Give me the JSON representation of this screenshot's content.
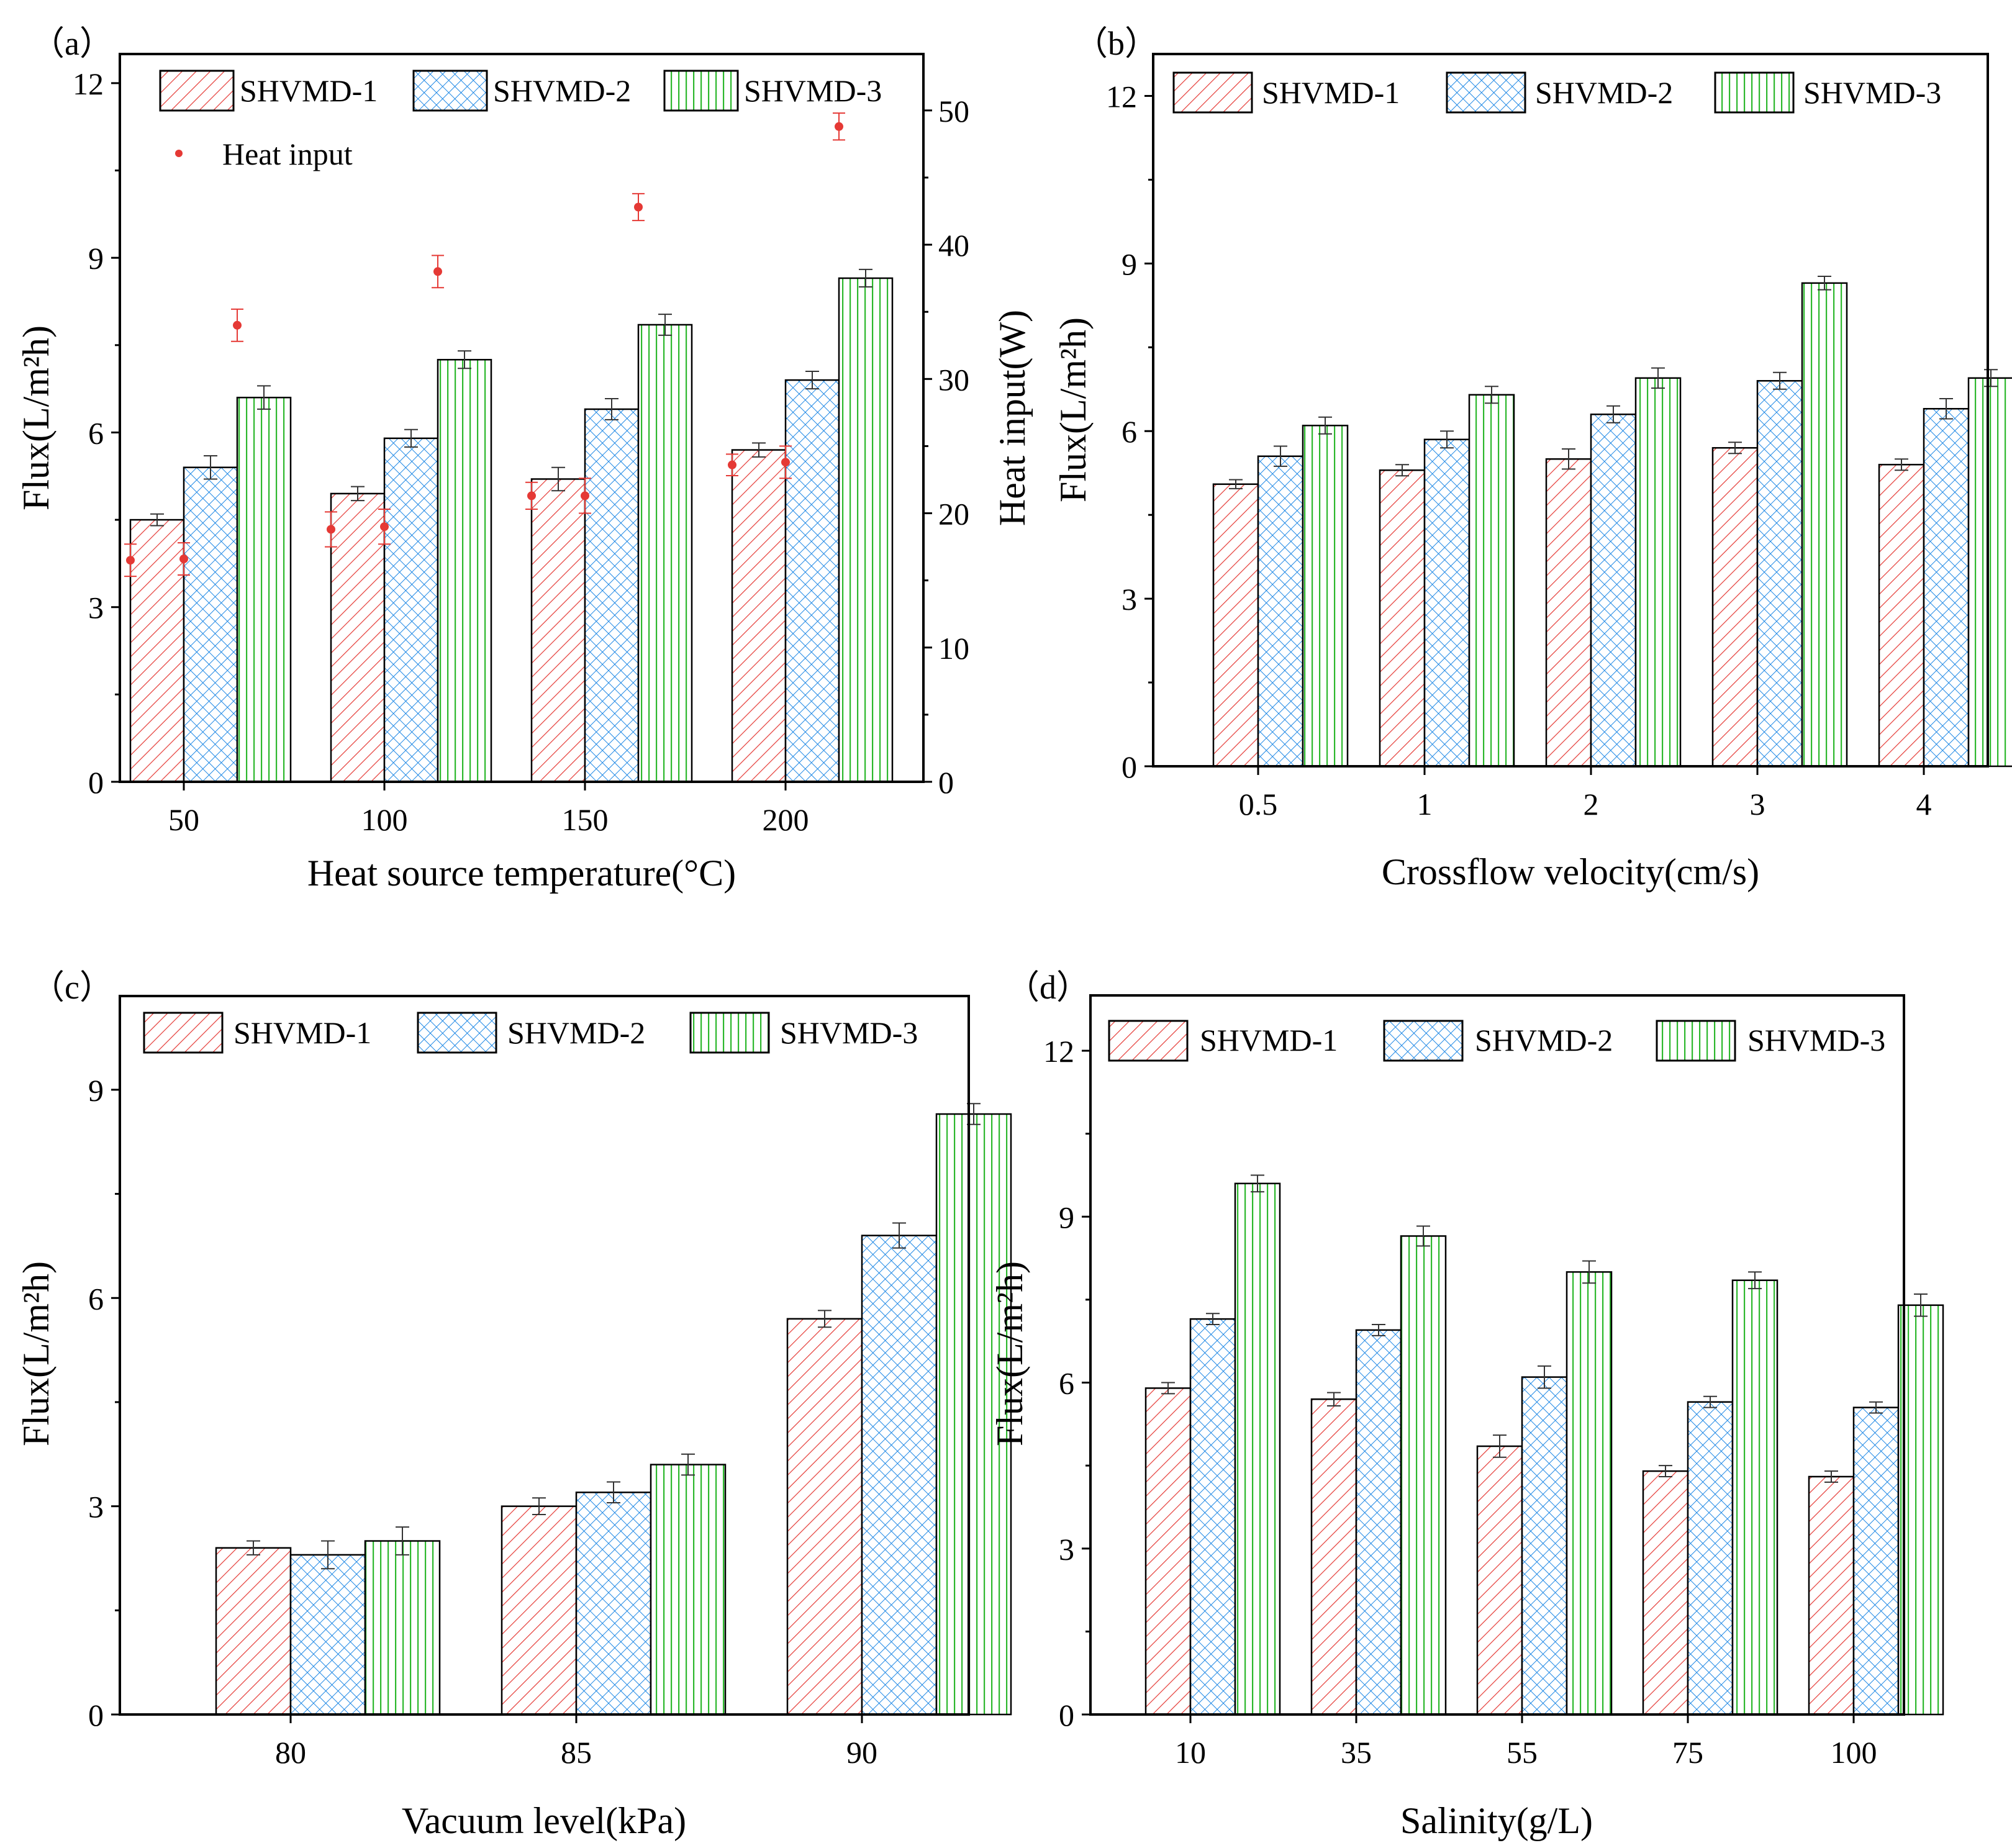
{
  "colors": {
    "series": [
      "#e53935",
      "#1e88e5",
      "#2db82d"
    ],
    "heat": "#e53935",
    "axis": "#000000"
  },
  "chart_data": [
    {
      "type": "bar",
      "panel_label": "（a）",
      "xlabel": "Heat source temperature(°C)",
      "ylabel": "Flux(L/m²h)",
      "ylim": [
        0,
        12.5
      ],
      "yticks": [
        0,
        3,
        6,
        9,
        12
      ],
      "categories": [
        "50",
        "100",
        "150",
        "200"
      ],
      "series": [
        {
          "name": "SHVMD-1",
          "values": [
            4.5,
            4.95,
            5.2,
            5.7
          ],
          "errors": [
            0.1,
            0.12,
            0.2,
            0.12
          ]
        },
        {
          "name": "SHVMD-2",
          "values": [
            5.4,
            5.9,
            6.4,
            6.9
          ],
          "errors": [
            0.2,
            0.15,
            0.18,
            0.15
          ]
        },
        {
          "name": "SHVMD-3",
          "values": [
            6.6,
            7.25,
            7.85,
            8.65
          ],
          "errors": [
            0.2,
            0.15,
            0.18,
            0.15
          ]
        }
      ],
      "y2": {
        "label": "Heat input(W)",
        "ylim": [
          0,
          54.2
        ],
        "ticks": [
          0,
          10,
          20,
          30,
          40,
          50
        ],
        "series_name": "Heat input",
        "points": [
          {
            "cat": 0,
            "slot": -1,
            "value": 16.5,
            "error": 1.2
          },
          {
            "cat": 0,
            "slot": 0,
            "value": 16.6,
            "error": 1.2
          },
          {
            "cat": 0,
            "slot": 1,
            "value": 34.0,
            "error": 1.2
          },
          {
            "cat": 1,
            "slot": -1,
            "value": 18.8,
            "error": 1.3
          },
          {
            "cat": 1,
            "slot": 0,
            "value": 19.0,
            "error": 1.3
          },
          {
            "cat": 1,
            "slot": 1,
            "value": 38.0,
            "error": 1.2
          },
          {
            "cat": 2,
            "slot": -1,
            "value": 21.3,
            "error": 1.0
          },
          {
            "cat": 2,
            "slot": 0,
            "value": 21.3,
            "error": 1.3
          },
          {
            "cat": 2,
            "slot": 1,
            "value": 42.8,
            "error": 1.0
          },
          {
            "cat": 3,
            "slot": -1,
            "value": 23.6,
            "error": 0.8
          },
          {
            "cat": 3,
            "slot": 0,
            "value": 23.8,
            "error": 1.2
          },
          {
            "cat": 3,
            "slot": 1,
            "value": 48.8,
            "error": 1.0
          }
        ]
      }
    },
    {
      "type": "bar",
      "panel_label": "（b）",
      "xlabel": "Crossflow velocity(cm/s)",
      "ylabel": "Flux(L/m²h)",
      "ylim": [
        0,
        12.75
      ],
      "yticks": [
        0,
        3,
        6,
        9,
        12
      ],
      "categories": [
        "0.5",
        "1",
        "2",
        "3",
        "4"
      ],
      "series": [
        {
          "name": "SHVMD-1",
          "values": [
            5.05,
            5.3,
            5.5,
            5.7,
            5.4
          ],
          "errors": [
            0.08,
            0.1,
            0.18,
            0.1,
            0.1
          ]
        },
        {
          "name": "SHVMD-2",
          "values": [
            5.55,
            5.85,
            6.3,
            6.9,
            6.4
          ],
          "errors": [
            0.18,
            0.15,
            0.15,
            0.15,
            0.18
          ]
        },
        {
          "name": "SHVMD-3",
          "values": [
            6.1,
            6.65,
            6.95,
            8.65,
            6.95
          ],
          "errors": [
            0.15,
            0.15,
            0.18,
            0.12,
            0.15
          ]
        }
      ]
    },
    {
      "type": "bar",
      "panel_label": "（c）",
      "xlabel": "Vacuum level(kPa)",
      "ylabel": "Flux(L/m²h)",
      "ylim": [
        0,
        10.35
      ],
      "yticks": [
        0,
        3,
        6,
        9
      ],
      "categories": [
        "80",
        "85",
        "90"
      ],
      "series": [
        {
          "name": "SHVMD-1",
          "values": [
            2.4,
            3.0,
            5.7
          ],
          "errors": [
            0.1,
            0.12,
            0.12
          ]
        },
        {
          "name": "SHVMD-2",
          "values": [
            2.3,
            3.2,
            6.9
          ],
          "errors": [
            0.2,
            0.15,
            0.18
          ]
        },
        {
          "name": "SHVMD-3",
          "values": [
            2.5,
            3.6,
            8.65
          ],
          "errors": [
            0.2,
            0.15,
            0.15
          ]
        }
      ]
    },
    {
      "type": "bar",
      "panel_label": "（d）",
      "xlabel": "Salinity(g/L)",
      "ylabel": "Flux(L/m²h)",
      "ylim": [
        0,
        13.0
      ],
      "yticks": [
        0,
        3,
        6,
        9,
        12
      ],
      "categories": [
        "10",
        "35",
        "55",
        "75",
        "100"
      ],
      "series": [
        {
          "name": "SHVMD-1",
          "values": [
            5.9,
            5.7,
            4.85,
            4.4,
            4.3
          ],
          "errors": [
            0.1,
            0.12,
            0.2,
            0.1,
            0.1
          ]
        },
        {
          "name": "SHVMD-2",
          "values": [
            7.15,
            6.95,
            6.1,
            5.65,
            5.55
          ],
          "errors": [
            0.1,
            0.1,
            0.2,
            0.1,
            0.1
          ]
        },
        {
          "name": "SHVMD-3",
          "values": [
            9.6,
            8.65,
            8.0,
            7.85,
            7.4
          ],
          "errors": [
            0.15,
            0.18,
            0.2,
            0.15,
            0.2
          ]
        }
      ]
    }
  ]
}
